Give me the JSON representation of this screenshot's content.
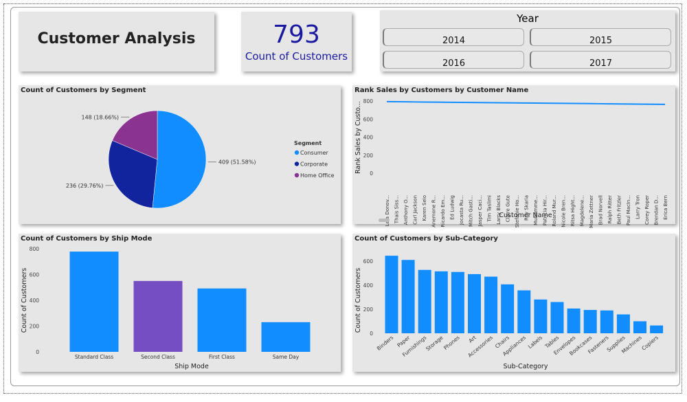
{
  "header": {
    "title": "Customer Analysis"
  },
  "kpi": {
    "value": "793",
    "label": "Count of Customers",
    "color": "#1a1aa0"
  },
  "year_slicer": {
    "title": "Year",
    "options": [
      "2014",
      "2015",
      "2016",
      "2017"
    ]
  },
  "colors": {
    "consumer": "#118dff",
    "corporate": "#12239e",
    "home_office": "#8a3391",
    "bar": "#118dff",
    "bar_highlight": "#744ec2"
  },
  "chart_data": [
    {
      "id": "segment",
      "type": "pie",
      "title": "Count of Customers by Segment",
      "legend_title": "Segment",
      "legend_position": "right",
      "categories": [
        "Consumer",
        "Corporate",
        "Home Office"
      ],
      "values": [
        409,
        236,
        148
      ],
      "labels": [
        "409 (51.58%)",
        "236 (29.76%)",
        "148 (18.66%)"
      ]
    },
    {
      "id": "rank",
      "type": "line",
      "title": "Rank Sales by Customers by Customer Name",
      "xlabel": "Customer Name",
      "ylabel": "Rank Sales by Custo...",
      "ylim": [
        0,
        800
      ],
      "yticks": [
        "0",
        "200",
        "400",
        "600",
        "800"
      ],
      "categories": [
        "Lela Donov...",
        "Thais Siss...",
        "Anthony O...",
        "Carl Jackson",
        "Karen Seio",
        "Anemone R...",
        "Ricardo Em...",
        "Ed Ludwig",
        "Jocasta Ru...",
        "Mitch Gasti...",
        "Jasper Caci...",
        "Tim Taslimi",
        "Larry Blacks",
        "Claire Gute",
        "Stefanie Ho...",
        "Roy Skaria",
        "Muhamme...",
        "Patricia Hir...",
        "Roland Mur...",
        "Nicole Bren...",
        "Ritsa Hight...",
        "Magdelene...",
        "Maria Zettner",
        "Brad Norvell",
        "Ralph Ritter",
        "Beth Fritzler",
        "Paul MacIn...",
        "Larry Tron",
        "Corey Roper",
        "Brendan D...",
        "Erica Bern"
      ],
      "values": [
        793,
        792,
        791,
        790,
        789,
        788,
        787,
        786,
        785,
        784,
        783,
        782,
        781,
        780,
        779,
        778,
        777,
        776,
        775,
        774,
        773,
        772,
        771,
        770,
        769,
        768,
        767,
        766,
        765,
        764,
        763
      ]
    },
    {
      "id": "ship",
      "type": "bar",
      "title": "Count of Customers by Ship Mode",
      "xlabel": "Ship Mode",
      "ylabel": "Count of Customers",
      "ylim": [
        0,
        800
      ],
      "yticks": [
        "0",
        "200",
        "400",
        "600",
        "800"
      ],
      "categories": [
        "Standard Class",
        "Second Class",
        "First Class",
        "Same Day"
      ],
      "values": [
        778,
        550,
        492,
        230
      ],
      "highlighted": "Second Class"
    },
    {
      "id": "subcat",
      "type": "bar",
      "title": "Count of Customers by Sub-Category",
      "xlabel": "Sub-Category",
      "ylabel": "Count of Customers",
      "ylim": [
        0,
        600
      ],
      "yticks": [
        "0",
        "200",
        "400",
        "600"
      ],
      "categories": [
        "Binders",
        "Paper",
        "Furnishings",
        "Storage",
        "Phones",
        "Art",
        "Accessories",
        "Chairs",
        "Appliances",
        "Labels",
        "Tables",
        "Envelopes",
        "Bookcases",
        "Fasteners",
        "Supplies",
        "Machines",
        "Copiers"
      ],
      "values": [
        645,
        610,
        527,
        515,
        510,
        492,
        471,
        407,
        357,
        281,
        260,
        206,
        194,
        190,
        157,
        100,
        65
      ]
    }
  ]
}
